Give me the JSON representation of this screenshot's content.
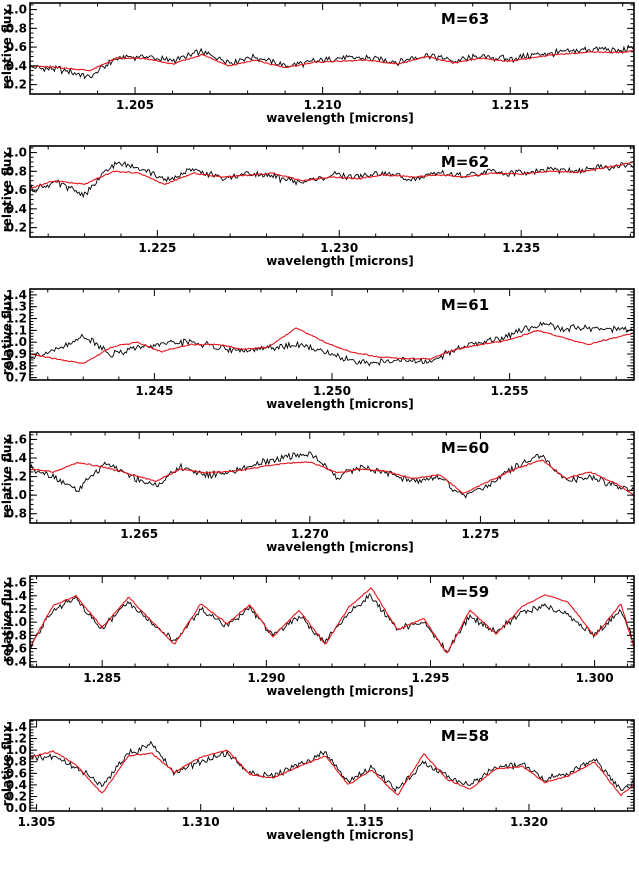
{
  "figure": {
    "xlabel": "wavelength [microns]",
    "ylabel": "relative flux",
    "observed_color": "#000000",
    "model_color": "#e8141a"
  },
  "chart_data": [
    {
      "type": "line",
      "label": "M=63",
      "xlim": [
        1.2022,
        1.2183
      ],
      "ylim": [
        0.1,
        1.07
      ],
      "xticks": [
        1.205,
        1.21,
        1.215
      ],
      "xtick_labels": [
        "1.205",
        "1.210",
        "1.215"
      ],
      "yticks": [
        0.2,
        0.4,
        0.6,
        0.8,
        1.0
      ],
      "ytick_labels": [
        "0.2",
        "0.4",
        "0.6",
        "0.8",
        "1.0"
      ],
      "series": [
        {
          "role": "observed",
          "color": "#000000",
          "x": [
            1.2022,
            1.203,
            1.2038,
            1.2045,
            1.2052,
            1.206,
            1.2068,
            1.2075,
            1.2082,
            1.209,
            1.2098,
            1.2105,
            1.2112,
            1.212,
            1.2128,
            1.2135,
            1.2142,
            1.215,
            1.2158,
            1.2165,
            1.2172,
            1.218,
            1.2183
          ],
          "y": [
            0.38,
            0.36,
            0.28,
            0.48,
            0.5,
            0.45,
            0.55,
            0.44,
            0.5,
            0.4,
            0.45,
            0.49,
            0.48,
            0.44,
            0.52,
            0.45,
            0.5,
            0.47,
            0.52,
            0.55,
            0.58,
            0.56,
            0.6
          ]
        },
        {
          "role": "model",
          "color": "#e8141a",
          "x": [
            1.2022,
            1.203,
            1.2038,
            1.2045,
            1.2052,
            1.206,
            1.2068,
            1.2075,
            1.2082,
            1.209,
            1.2098,
            1.2105,
            1.2112,
            1.212,
            1.2128,
            1.2135,
            1.2142,
            1.215,
            1.2158,
            1.2165,
            1.2172,
            1.218,
            1.2183
          ],
          "y": [
            0.4,
            0.38,
            0.35,
            0.48,
            0.48,
            0.42,
            0.52,
            0.4,
            0.46,
            0.38,
            0.44,
            0.45,
            0.46,
            0.42,
            0.5,
            0.43,
            0.48,
            0.45,
            0.5,
            0.53,
            0.55,
            0.54,
            0.57
          ]
        }
      ]
    },
    {
      "type": "line",
      "label": "M=62",
      "xlim": [
        1.2215,
        1.2381
      ],
      "ylim": [
        0.1,
        1.07
      ],
      "xticks": [
        1.225,
        1.23,
        1.235
      ],
      "xtick_labels": [
        "1.225",
        "1.230",
        "1.235"
      ],
      "yticks": [
        0.2,
        0.4,
        0.6,
        0.8,
        1.0
      ],
      "ytick_labels": [
        "0.2",
        "0.4",
        "0.6",
        "0.8",
        "1.0"
      ],
      "series": [
        {
          "role": "observed",
          "color": "#000000",
          "x": [
            1.2215,
            1.2222,
            1.223,
            1.2238,
            1.2245,
            1.2252,
            1.226,
            1.2268,
            1.2275,
            1.2282,
            1.229,
            1.2298,
            1.2305,
            1.2312,
            1.232,
            1.2328,
            1.2335,
            1.2342,
            1.235,
            1.2358,
            1.2365,
            1.2372,
            1.2381
          ],
          "y": [
            0.6,
            0.68,
            0.55,
            0.88,
            0.85,
            0.7,
            0.82,
            0.72,
            0.78,
            0.74,
            0.68,
            0.76,
            0.74,
            0.78,
            0.72,
            0.78,
            0.75,
            0.8,
            0.78,
            0.82,
            0.8,
            0.84,
            0.86
          ]
        },
        {
          "role": "model",
          "color": "#e8141a",
          "x": [
            1.2215,
            1.2222,
            1.223,
            1.2238,
            1.2245,
            1.2252,
            1.226,
            1.2268,
            1.2275,
            1.2282,
            1.229,
            1.2298,
            1.2305,
            1.2312,
            1.232,
            1.2328,
            1.2335,
            1.2342,
            1.235,
            1.2358,
            1.2365,
            1.2372,
            1.2381
          ],
          "y": [
            0.62,
            0.7,
            0.66,
            0.8,
            0.78,
            0.66,
            0.78,
            0.74,
            0.76,
            0.78,
            0.7,
            0.74,
            0.72,
            0.76,
            0.74,
            0.76,
            0.74,
            0.78,
            0.77,
            0.8,
            0.79,
            0.83,
            0.9
          ]
        }
      ]
    },
    {
      "type": "line",
      "label": "M=61",
      "xlim": [
        1.2415,
        1.2585
      ],
      "ylim": [
        0.68,
        1.45
      ],
      "xticks": [
        1.245,
        1.25,
        1.255
      ],
      "xtick_labels": [
        "1.245",
        "1.250",
        "1.255"
      ],
      "yticks": [
        0.7,
        0.8,
        0.9,
        1.0,
        1.1,
        1.2,
        1.3,
        1.4
      ],
      "ytick_labels": [
        "0.7",
        "0.8",
        "0.9",
        "1.0",
        "1.1",
        "1.2",
        "1.3",
        "1.4"
      ],
      "series": [
        {
          "role": "observed",
          "color": "#000000",
          "x": [
            1.2415,
            1.2422,
            1.243,
            1.2438,
            1.2445,
            1.2452,
            1.246,
            1.2468,
            1.2475,
            1.2482,
            1.249,
            1.2498,
            1.2505,
            1.2512,
            1.252,
            1.2528,
            1.2535,
            1.2542,
            1.255,
            1.2558,
            1.2565,
            1.2572,
            1.2585
          ],
          "y": [
            0.88,
            0.92,
            1.05,
            0.9,
            0.95,
            0.98,
            1.0,
            0.96,
            0.92,
            0.95,
            0.98,
            0.92,
            0.85,
            0.82,
            0.85,
            0.83,
            0.95,
            1.0,
            1.05,
            1.15,
            1.12,
            1.12,
            1.1
          ]
        },
        {
          "role": "model",
          "color": "#e8141a",
          "x": [
            1.2415,
            1.2422,
            1.243,
            1.2438,
            1.2445,
            1.2452,
            1.246,
            1.2468,
            1.2475,
            1.2482,
            1.249,
            1.2498,
            1.2505,
            1.2512,
            1.252,
            1.2528,
            1.2535,
            1.2542,
            1.255,
            1.2558,
            1.2565,
            1.2572,
            1.2585
          ],
          "y": [
            0.9,
            0.86,
            0.82,
            0.96,
            1.0,
            0.92,
            0.98,
            0.98,
            0.94,
            0.96,
            1.12,
            1.0,
            0.92,
            0.88,
            0.86,
            0.86,
            0.94,
            0.98,
            1.02,
            1.1,
            1.04,
            0.98,
            1.08
          ]
        }
      ]
    },
    {
      "type": "line",
      "label": "M=60",
      "xlim": [
        1.2618,
        1.2795
      ],
      "ylim": [
        0.7,
        1.68
      ],
      "xticks": [
        1.265,
        1.27,
        1.275
      ],
      "xtick_labels": [
        "1.265",
        "1.270",
        "1.275"
      ],
      "yticks": [
        0.8,
        1.0,
        1.2,
        1.4,
        1.6
      ],
      "ytick_labels": [
        "0.8",
        "1.0",
        "1.2",
        "1.4",
        "1.6"
      ],
      "series": [
        {
          "role": "observed",
          "color": "#000000",
          "x": [
            1.2618,
            1.2625,
            1.2632,
            1.264,
            1.2648,
            1.2655,
            1.2662,
            1.267,
            1.2678,
            1.2685,
            1.2692,
            1.27,
            1.2708,
            1.2715,
            1.2722,
            1.273,
            1.2738,
            1.2745,
            1.2752,
            1.276,
            1.2768,
            1.2775,
            1.2782,
            1.279,
            1.2795
          ],
          "y": [
            1.3,
            1.2,
            1.05,
            1.35,
            1.2,
            1.1,
            1.3,
            1.22,
            1.25,
            1.35,
            1.4,
            1.45,
            1.2,
            1.3,
            1.25,
            1.15,
            1.2,
            0.98,
            1.1,
            1.3,
            1.42,
            1.15,
            1.2,
            1.1,
            1.05
          ]
        },
        {
          "role": "model",
          "color": "#e8141a",
          "x": [
            1.2618,
            1.2625,
            1.2632,
            1.264,
            1.2648,
            1.2655,
            1.2662,
            1.267,
            1.2678,
            1.2685,
            1.2692,
            1.27,
            1.2708,
            1.2715,
            1.2722,
            1.273,
            1.2738,
            1.2745,
            1.2752,
            1.276,
            1.2768,
            1.2775,
            1.2782,
            1.279,
            1.2795
          ],
          "y": [
            1.28,
            1.25,
            1.35,
            1.3,
            1.22,
            1.15,
            1.28,
            1.24,
            1.26,
            1.3,
            1.34,
            1.36,
            1.24,
            1.28,
            1.26,
            1.18,
            1.22,
            1.02,
            1.14,
            1.28,
            1.38,
            1.18,
            1.25,
            1.12,
            1.0
          ]
        }
      ]
    },
    {
      "type": "line",
      "label": "M=59",
      "xlim": [
        1.2828,
        1.3012
      ],
      "ylim": [
        0.32,
        1.7
      ],
      "xticks": [
        1.285,
        1.29,
        1.295,
        1.3
      ],
      "xtick_labels": [
        "1.285",
        "1.290",
        "1.295",
        "1.300"
      ],
      "yticks": [
        0.4,
        0.6,
        0.8,
        1.0,
        1.2,
        1.4,
        1.6
      ],
      "ytick_labels": [
        "0.4",
        "0.6",
        "0.8",
        "1.0",
        "1.2",
        "1.4",
        "1.6"
      ],
      "series": [
        {
          "role": "observed",
          "color": "#000000",
          "x": [
            1.2828,
            1.2835,
            1.2842,
            1.285,
            1.2858,
            1.2865,
            1.2872,
            1.288,
            1.2888,
            1.2895,
            1.2902,
            1.291,
            1.2918,
            1.2925,
            1.2932,
            1.294,
            1.2948,
            1.2955,
            1.2962,
            1.297,
            1.2978,
            1.2985,
            1.2992,
            1.3,
            1.3008,
            1.3012
          ],
          "y": [
            0.6,
            1.2,
            1.35,
            0.9,
            1.3,
            1.0,
            0.7,
            1.2,
            0.95,
            1.2,
            0.8,
            1.1,
            0.7,
            1.15,
            1.4,
            0.9,
            1.0,
            0.55,
            1.1,
            0.85,
            1.15,
            1.25,
            1.1,
            0.8,
            1.2,
            0.7
          ]
        },
        {
          "role": "model",
          "color": "#e8141a",
          "x": [
            1.2828,
            1.2835,
            1.2842,
            1.285,
            1.2858,
            1.2865,
            1.2872,
            1.288,
            1.2888,
            1.2895,
            1.2902,
            1.291,
            1.2918,
            1.2925,
            1.2932,
            1.294,
            1.2948,
            1.2955,
            1.2962,
            1.297,
            1.2978,
            1.2985,
            1.2992,
            1.3,
            1.3008,
            1.3012
          ],
          "y": [
            0.62,
            1.25,
            1.4,
            0.92,
            1.38,
            1.02,
            0.66,
            1.28,
            0.98,
            1.26,
            0.78,
            1.18,
            0.66,
            1.22,
            1.52,
            0.88,
            1.06,
            0.52,
            1.18,
            0.82,
            1.24,
            1.42,
            1.3,
            0.78,
            1.28,
            0.62
          ]
        }
      ]
    },
    {
      "type": "line",
      "label": "M=58",
      "xlim": [
        1.3048,
        1.3232
      ],
      "ylim": [
        -0.05,
        1.52
      ],
      "xticks": [
        1.305,
        1.31,
        1.315,
        1.32
      ],
      "xtick_labels": [
        "1.305",
        "1.310",
        "1.315",
        "1.320"
      ],
      "yticks": [
        0.0,
        0.2,
        0.4,
        0.6,
        0.8,
        1.0,
        1.2,
        1.4
      ],
      "ytick_labels": [
        "0.0",
        "0.2",
        "0.4",
        "0.6",
        "0.8",
        "1.0",
        "1.2",
        "1.4"
      ],
      "series": [
        {
          "role": "observed",
          "color": "#000000",
          "x": [
            1.3048,
            1.3055,
            1.3062,
            1.307,
            1.3078,
            1.3085,
            1.3092,
            1.31,
            1.3108,
            1.3115,
            1.3122,
            1.313,
            1.3138,
            1.3145,
            1.3152,
            1.316,
            1.3168,
            1.3175,
            1.3182,
            1.319,
            1.3198,
            1.3205,
            1.3212,
            1.322,
            1.3228,
            1.3232
          ],
          "y": [
            0.85,
            0.9,
            0.7,
            0.4,
            0.95,
            1.1,
            0.6,
            0.8,
            0.95,
            0.6,
            0.55,
            0.75,
            0.95,
            0.45,
            0.7,
            0.3,
            0.8,
            0.55,
            0.4,
            0.7,
            0.75,
            0.5,
            0.6,
            0.85,
            0.3,
            0.45
          ]
        },
        {
          "role": "model",
          "color": "#e8141a",
          "x": [
            1.3048,
            1.3055,
            1.3062,
            1.307,
            1.3078,
            1.3085,
            1.3092,
            1.31,
            1.3108,
            1.3115,
            1.3122,
            1.313,
            1.3138,
            1.3145,
            1.3152,
            1.316,
            1.3168,
            1.3175,
            1.3182,
            1.319,
            1.3198,
            1.3205,
            1.3212,
            1.322,
            1.3228,
            1.3232
          ],
          "y": [
            0.88,
            0.98,
            0.75,
            0.25,
            0.9,
            0.95,
            0.62,
            0.88,
            1.0,
            0.58,
            0.52,
            0.72,
            0.9,
            0.4,
            0.66,
            0.22,
            0.94,
            0.5,
            0.32,
            0.68,
            0.72,
            0.44,
            0.56,
            0.8,
            0.22,
            0.4
          ]
        }
      ]
    }
  ]
}
